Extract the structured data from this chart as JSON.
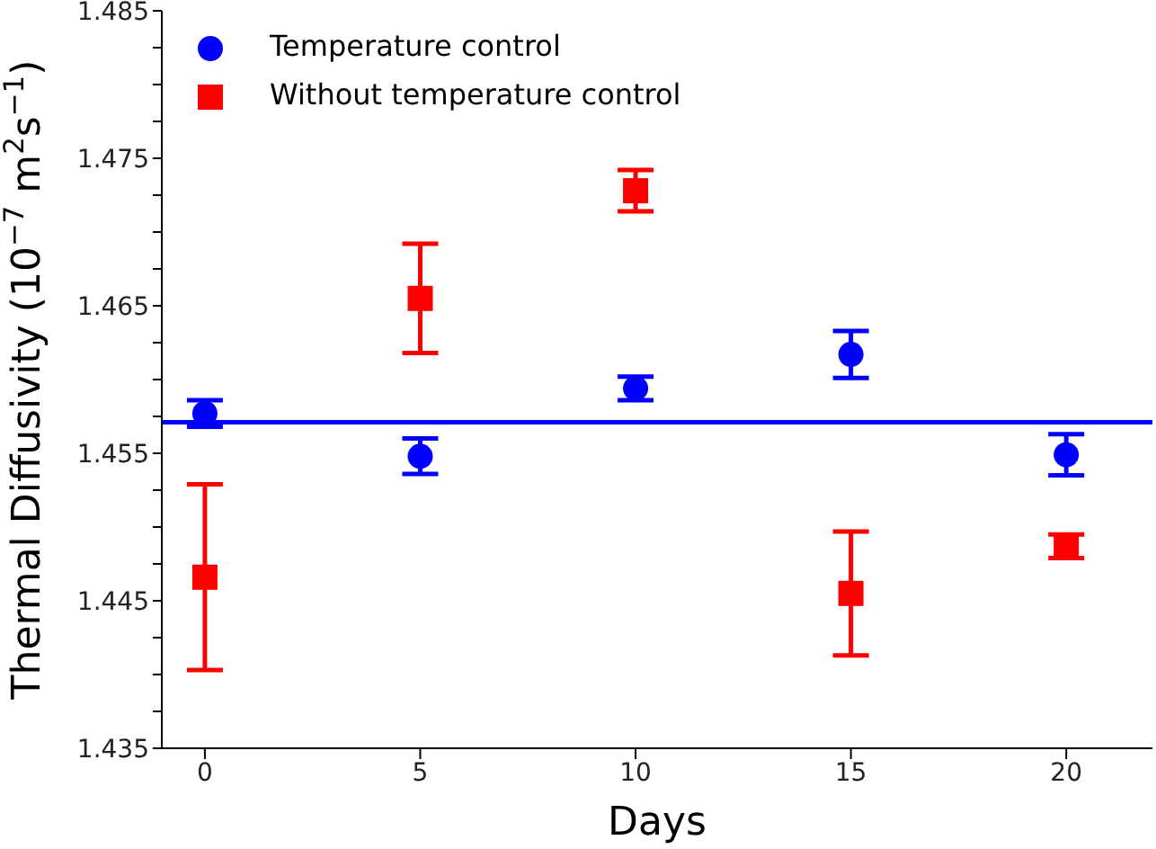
{
  "chart_data": {
    "type": "scatter",
    "xlabel": "Days",
    "ylabel": "Thermal Diffusivity (10$^{−7}$ m$^{2}$s$^{−1}$)",
    "x": [
      0,
      5,
      10,
      15,
      20
    ],
    "series": [
      {
        "name": "Temperature control",
        "color": "#0000ff",
        "marker": "circle",
        "values": [
          1.4577,
          1.4548,
          1.4594,
          1.4617,
          1.4549
        ],
        "errors": [
          0.0009,
          0.0012,
          0.0008,
          0.0016,
          0.0014
        ]
      },
      {
        "name": "Without temperature control",
        "color": "#ff0000",
        "marker": "square",
        "values": [
          1.4466,
          1.4655,
          1.4728,
          1.4455,
          1.4487
        ],
        "errors": [
          0.0063,
          0.0037,
          0.0014,
          0.0042,
          0.0008
        ]
      }
    ],
    "ref_lines": [
      {
        "axis": "y",
        "value": 1.4571,
        "color": "#0000ff",
        "line_style": "solid"
      }
    ],
    "xlim": [
      -1,
      22
    ],
    "xticks": [
      0,
      5,
      10,
      15,
      20
    ],
    "ylim": [
      1.435,
      1.485
    ],
    "yticks": [
      1.435,
      {
        "value": 1.4375,
        "label": null
      },
      {
        "value": 1.44,
        "label": null
      },
      {
        "value": 1.4425,
        "label": null
      },
      1.445,
      {
        "value": 1.4475,
        "label": null
      },
      {
        "value": 1.45,
        "label": null
      },
      {
        "value": 1.4525,
        "label": null
      },
      1.455,
      {
        "value": 1.4575,
        "label": null
      },
      {
        "value": 1.46,
        "label": null
      },
      {
        "value": 1.4625,
        "label": null
      },
      1.465,
      {
        "value": 1.4675,
        "label": null
      },
      {
        "value": 1.47,
        "label": null
      },
      {
        "value": 1.4725,
        "label": null
      },
      1.475,
      {
        "value": 1.4775,
        "label": null
      },
      {
        "value": 1.48,
        "label": null
      },
      {
        "value": 1.4825,
        "label": null
      },
      1.485
    ],
    "grid": false,
    "legend": "top left"
  }
}
